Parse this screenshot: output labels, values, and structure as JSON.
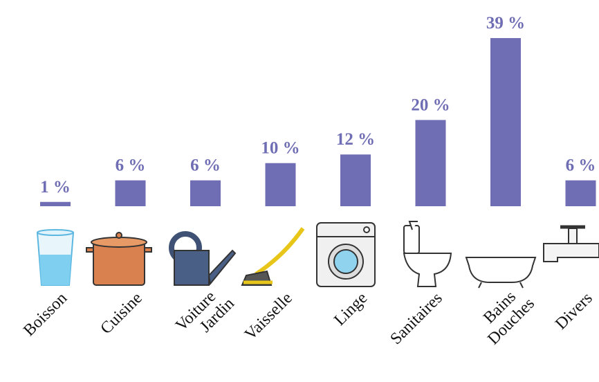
{
  "chart_data": {
    "type": "bar",
    "categories": [
      [
        "Boisson"
      ],
      [
        "Cuisine"
      ],
      [
        "Voiture",
        "Jardin"
      ],
      [
        "Vaisselle"
      ],
      [
        "Linge"
      ],
      [
        "Sanitaires"
      ],
      [
        "Bains",
        "Douches"
      ],
      [
        "Divers"
      ]
    ],
    "values": [
      1,
      6,
      6,
      10,
      12,
      20,
      39,
      6
    ],
    "value_labels": [
      "1 %",
      "6 %",
      "6 %",
      "10 %",
      "12 %",
      "20 %",
      "39 %",
      "6 %"
    ],
    "color": "#6f6db3",
    "ylim": [
      0,
      40
    ]
  }
}
